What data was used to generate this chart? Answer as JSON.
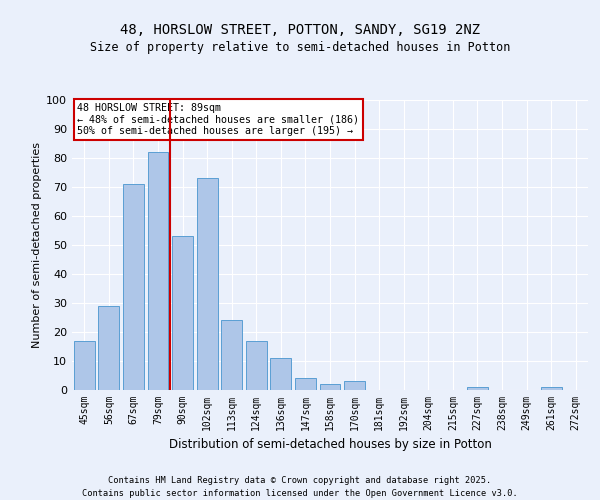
{
  "title1": "48, HORSLOW STREET, POTTON, SANDY, SG19 2NZ",
  "title2": "Size of property relative to semi-detached houses in Potton",
  "xlabel": "Distribution of semi-detached houses by size in Potton",
  "ylabel": "Number of semi-detached properties",
  "categories": [
    "45sqm",
    "56sqm",
    "67sqm",
    "79sqm",
    "90sqm",
    "102sqm",
    "113sqm",
    "124sqm",
    "136sqm",
    "147sqm",
    "158sqm",
    "170sqm",
    "181sqm",
    "192sqm",
    "204sqm",
    "215sqm",
    "227sqm",
    "238sqm",
    "249sqm",
    "261sqm",
    "272sqm"
  ],
  "values": [
    17,
    29,
    71,
    82,
    53,
    73,
    24,
    17,
    11,
    4,
    2,
    3,
    0,
    0,
    0,
    0,
    1,
    0,
    0,
    1,
    0
  ],
  "bar_color": "#aec6e8",
  "bar_edge_color": "#5a9fd4",
  "vline_x": 3.5,
  "vline_color": "#cc0000",
  "annotation_text": "48 HORSLOW STREET: 89sqm\n← 48% of semi-detached houses are smaller (186)\n50% of semi-detached houses are larger (195) →",
  "annotation_box_color": "#ffffff",
  "annotation_box_edge": "#cc0000",
  "footnote1": "Contains HM Land Registry data © Crown copyright and database right 2025.",
  "footnote2": "Contains public sector information licensed under the Open Government Licence v3.0.",
  "bg_color": "#eaf0fb",
  "plot_bg_color": "#eaf0fb",
  "ylim": [
    0,
    100
  ],
  "yticks": [
    0,
    10,
    20,
    30,
    40,
    50,
    60,
    70,
    80,
    90,
    100
  ]
}
